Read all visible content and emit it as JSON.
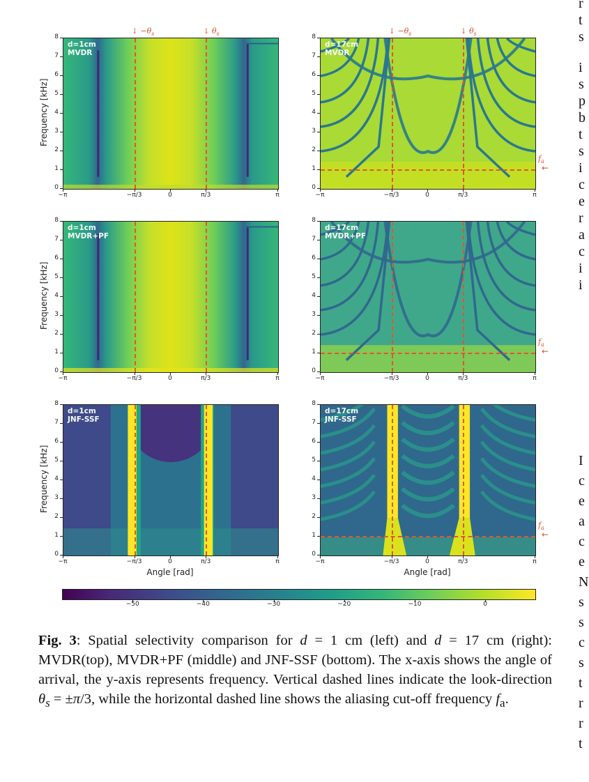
{
  "figure": {
    "colorbar": {
      "colormap": "viridis",
      "ticks": [
        "−50",
        "−40",
        "−30",
        "−20",
        "−10",
        "0"
      ],
      "tick_values": [
        -50,
        -40,
        -30,
        -20,
        -10,
        0
      ],
      "range": [
        -60,
        7
      ]
    },
    "axis": {
      "ylabel": "Frequency [kHz]",
      "xlabel": "Angle [rad]",
      "yticks": [
        "0",
        "1",
        "2",
        "3",
        "4",
        "5",
        "6",
        "7",
        "8"
      ],
      "xticks": [
        "−π",
        "−π/3",
        "0",
        "π/3",
        "π"
      ]
    },
    "annotations": {
      "neg_theta": "↓ −θ",
      "pos_theta": "↓ θ",
      "theta_sub": "s",
      "fa": "f",
      "fa_sub": "a",
      "fa_arrow": "←"
    },
    "panels": [
      {
        "id": "mvdr-1cm",
        "line1": "d=1cm",
        "line2": "MVDR",
        "show_fa": false,
        "show_xlabel": false,
        "show_ylabel": true
      },
      {
        "id": "mvdr-17cm",
        "line1": "d=17cm",
        "line2": "MVDR",
        "show_fa": true,
        "show_xlabel": false,
        "show_ylabel": false
      },
      {
        "id": "mvdrpf-1cm",
        "line1": "d=1cm",
        "line2": "MVDR+PF",
        "show_fa": false,
        "show_xlabel": false,
        "show_ylabel": true
      },
      {
        "id": "mvdrpf-17cm",
        "line1": "d=17cm",
        "line2": "MVDR+PF",
        "show_fa": true,
        "show_xlabel": false,
        "show_ylabel": false
      },
      {
        "id": "jnfssf-1cm",
        "line1": "d=1cm",
        "line2": "JNF-SSF",
        "show_fa": false,
        "show_xlabel": true,
        "show_ylabel": true
      },
      {
        "id": "jnfssf-17cm",
        "line1": "d=17cm",
        "line2": "JNF-SSF",
        "show_fa": true,
        "show_xlabel": true,
        "show_ylabel": false
      }
    ]
  },
  "chart_data": {
    "type": "heatmap",
    "title": "Spatial selectivity comparison",
    "xlabel": "Angle [rad]",
    "ylabel": "Frequency [kHz]",
    "xlim": [
      -3.1416,
      3.1416
    ],
    "ylim": [
      0,
      8
    ],
    "x_tick_labels": [
      "−π",
      "−π/3",
      "0",
      "π/3",
      "π"
    ],
    "y_tick_labels": [
      "0",
      "1",
      "2",
      "3",
      "4",
      "5",
      "6",
      "7",
      "8"
    ],
    "colorbar_ticks": [
      -50,
      -40,
      -30,
      -20,
      -10,
      0
    ],
    "colorbar_range_db": [
      -60,
      7
    ],
    "look_directions_rad": [
      -1.0472,
      1.0472
    ],
    "aliasing_cutoff_khz": 1,
    "panels": [
      {
        "spacing": "d=1cm",
        "method": "MVDR",
        "row": "top",
        "col": "left"
      },
      {
        "spacing": "d=17cm",
        "method": "MVDR",
        "row": "top",
        "col": "right"
      },
      {
        "spacing": "d=1cm",
        "method": "MVDR+PF",
        "row": "middle",
        "col": "left"
      },
      {
        "spacing": "d=17cm",
        "method": "MVDR+PF",
        "row": "middle",
        "col": "right"
      },
      {
        "spacing": "d=1cm",
        "method": "JNF-SSF",
        "row": "bottom",
        "col": "left"
      },
      {
        "spacing": "d=17cm",
        "method": "JNF-SSF",
        "row": "bottom",
        "col": "right"
      }
    ]
  },
  "caption": {
    "label": "Fig. 3",
    "text_html": ": Spatial selectivity comparison for <i>d</i> = 1 cm (left) and <i>d</i> = 17 cm (right): MVDR(top), MVDR+PF (middle) and JNF-SSF (bottom). The x-axis shows the angle of arrival, the y-axis represents frequency. Vertical dashed lines indicate the look-direction <i>θ<sub>s</sub></i> = ±<i>π</i>/3, while the horizontal dashed line shows the aliasing cut-off frequency <i>f</i><sub>a</sub>."
  },
  "side_column_chars": {
    "top": [
      "r",
      "t",
      "s",
      "",
      "i",
      "s",
      "p",
      "b",
      "t",
      "s",
      "i",
      "c",
      "e",
      "r",
      "a",
      "c",
      "i",
      "i"
    ],
    "bottom": [
      "I",
      "c",
      "e",
      "a",
      "c",
      "e",
      "N",
      "s",
      "s",
      "c",
      "s",
      "t",
      "r",
      "r",
      "t"
    ]
  }
}
